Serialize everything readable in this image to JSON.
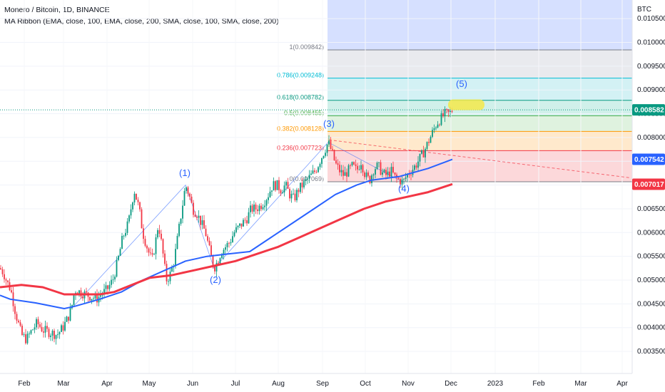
{
  "header": {
    "title": "Monero / Bitcoin, 1D, BINANCE",
    "indicator": "MA Ribbon (EMA, close, 100, EMA, close, 200, SMA, close, 100, SMA, close, 200)"
  },
  "chart_data": {
    "type": "candlestick",
    "price_axis_unit": "BTC",
    "y_ticks": [
      "0.010500",
      "0.010000",
      "0.009500",
      "0.009000",
      "0.008500",
      "0.008000",
      "0.007500",
      "0.007000",
      "0.006500",
      "0.006000",
      "0.005500",
      "0.005000",
      "0.004500",
      "0.004000",
      "0.003500"
    ],
    "x_ticks": [
      "Feb",
      "Mar",
      "Apr",
      "May",
      "Jun",
      "Jul",
      "Aug",
      "Sep",
      "Oct",
      "Nov",
      "Dec",
      "2023",
      "Feb",
      "Mar",
      "Apr"
    ],
    "fib_levels": [
      {
        "ratio": "1",
        "price": 0.009842,
        "label": "1(0.009842)",
        "color": "#787b86"
      },
      {
        "ratio": "0.786",
        "price": 0.009248,
        "label": "0.786(0.009248)",
        "color": "#00bcd4"
      },
      {
        "ratio": "0.618",
        "price": 0.008782,
        "label": "0.618(0.008782)",
        "color": "#089981"
      },
      {
        "ratio": "0.5",
        "price": 0.008455,
        "label": "0.5(0.008455)",
        "color": "#4caf50"
      },
      {
        "ratio": "0.382",
        "price": 0.008128,
        "label": "0.382(0.008128)",
        "color": "#ff9800"
      },
      {
        "ratio": "0.236",
        "price": 0.007723,
        "label": "0.236(0.007723)",
        "color": "#f23645"
      },
      {
        "ratio": "0",
        "price": 0.007069,
        "label": "0(0.007069)",
        "color": "#787b86"
      }
    ],
    "price_tags": [
      {
        "value": "0.008582",
        "color": "#089981"
      },
      {
        "value": "0.007542",
        "color": "#2962ff"
      },
      {
        "value": "0.007017",
        "color": "#f23645"
      }
    ],
    "wave_labels": [
      "(1)",
      "(2)",
      "(3)",
      "(4)",
      "(5)"
    ],
    "series": [
      {
        "name": "EMA 100",
        "color": "#2962ff",
        "values": [
          [
            0,
            0.00468
          ],
          [
            14,
            0.0046
          ],
          [
            50,
            0.00452
          ],
          [
            90,
            0.0044
          ],
          [
            105,
            0.00445
          ],
          [
            140,
            0.0046
          ],
          [
            170,
            0.00475
          ],
          [
            200,
            0.005
          ],
          [
            230,
            0.0052
          ],
          [
            260,
            0.0054
          ],
          [
            290,
            0.0055
          ],
          [
            320,
            0.00555
          ],
          [
            350,
            0.0056
          ],
          [
            380,
            0.0059
          ],
          [
            410,
            0.0062
          ],
          [
            440,
            0.0065
          ],
          [
            470,
            0.0068
          ],
          [
            500,
            0.007
          ],
          [
            520,
            0.0071
          ],
          [
            560,
            0.00718
          ],
          [
            600,
            0.00735
          ],
          [
            634,
            0.00754
          ]
        ]
      },
      {
        "name": "EMA 200",
        "color": "#f23645",
        "values": [
          [
            0,
            0.00485
          ],
          [
            30,
            0.0049
          ],
          [
            60,
            0.00485
          ],
          [
            90,
            0.0047
          ],
          [
            110,
            0.0047
          ],
          [
            140,
            0.0047
          ],
          [
            160,
            0.00475
          ],
          [
            185,
            0.0049
          ],
          [
            210,
            0.00505
          ],
          [
            240,
            0.0051
          ],
          [
            270,
            0.0052
          ],
          [
            300,
            0.0053
          ],
          [
            330,
            0.0054
          ],
          [
            360,
            0.00555
          ],
          [
            390,
            0.0057
          ],
          [
            420,
            0.0059
          ],
          [
            450,
            0.0061
          ],
          [
            480,
            0.0063
          ],
          [
            510,
            0.0065
          ],
          [
            540,
            0.00665
          ],
          [
            570,
            0.00675
          ],
          [
            600,
            0.00685
          ],
          [
            634,
            0.00702
          ]
        ]
      },
      {
        "name": "Close",
        "color": "#089981",
        "values": [
          [
            0,
            0.00525
          ],
          [
            5,
            0.00515
          ],
          [
            10,
            0.00495
          ],
          [
            15,
            0.0048
          ],
          [
            22,
            0.0043
          ],
          [
            30,
            0.00385
          ],
          [
            37,
            0.00375
          ],
          [
            45,
            0.00395
          ],
          [
            52,
            0.0041
          ],
          [
            60,
            0.00395
          ],
          [
            70,
            0.0039
          ],
          [
            80,
            0.00385
          ],
          [
            88,
            0.004
          ],
          [
            95,
            0.0042
          ],
          [
            100,
            0.0044
          ],
          [
            105,
            0.0048
          ],
          [
            112,
            0.00475
          ],
          [
            120,
            0.0047
          ],
          [
            128,
            0.00465
          ],
          [
            135,
            0.0046
          ],
          [
            142,
            0.0047
          ],
          [
            150,
            0.0048
          ],
          [
            158,
            0.005
          ],
          [
            165,
            0.0054
          ],
          [
            172,
            0.0059
          ],
          [
            180,
            0.0062
          ],
          [
            188,
            0.0069
          ],
          [
            195,
            0.0065
          ],
          [
            200,
            0.006
          ],
          [
            208,
            0.0056
          ],
          [
            213,
            0.0054
          ],
          [
            218,
            0.0058
          ],
          [
            222,
            0.0062
          ],
          [
            228,
            0.0056
          ],
          [
            233,
            0.005
          ],
          [
            238,
            0.0051
          ],
          [
            244,
            0.0054
          ],
          [
            250,
            0.006
          ],
          [
            256,
            0.0066
          ],
          [
            260,
            0.007
          ],
          [
            265,
            0.0068
          ],
          [
            270,
            0.0065
          ],
          [
            276,
            0.0064
          ],
          [
            282,
            0.0062
          ],
          [
            288,
            0.006
          ],
          [
            294,
            0.0056
          ],
          [
            300,
            0.00525
          ],
          [
            305,
            0.0054
          ],
          [
            310,
            0.0056
          ],
          [
            316,
            0.0057
          ],
          [
            322,
            0.0058
          ],
          [
            328,
            0.006
          ],
          [
            334,
            0.0061
          ],
          [
            340,
            0.0062
          ],
          [
            346,
            0.0063
          ],
          [
            352,
            0.0065
          ],
          [
            358,
            0.0065
          ],
          [
            364,
            0.00655
          ],
          [
            370,
            0.00665
          ],
          [
            376,
            0.0068
          ],
          [
            382,
            0.007
          ],
          [
            388,
            0.007
          ],
          [
            394,
            0.0069
          ],
          [
            400,
            0.007
          ],
          [
            406,
            0.0068
          ],
          [
            412,
            0.0067
          ],
          [
            418,
            0.0069
          ],
          [
            424,
            0.007
          ],
          [
            430,
            0.0071
          ],
          [
            436,
            0.0072
          ],
          [
            442,
            0.0073
          ],
          [
            448,
            0.0075
          ],
          [
            454,
            0.0077
          ],
          [
            460,
            0.0079
          ],
          [
            465,
            0.0077
          ],
          [
            470,
            0.00745
          ],
          [
            476,
            0.0073
          ],
          [
            482,
            0.0072
          ],
          [
            488,
            0.0073
          ],
          [
            494,
            0.0074
          ],
          [
            500,
            0.0073
          ],
          [
            506,
            0.0075
          ],
          [
            512,
            0.0072
          ],
          [
            518,
            0.0071
          ],
          [
            524,
            0.00735
          ],
          [
            530,
            0.0074
          ],
          [
            536,
            0.00725
          ],
          [
            542,
            0.0072
          ],
          [
            548,
            0.0073
          ],
          [
            554,
            0.00715
          ],
          [
            560,
            0.0071
          ],
          [
            565,
            0.00706
          ],
          [
            570,
            0.0072
          ],
          [
            576,
            0.0073
          ],
          [
            582,
            0.0074
          ],
          [
            588,
            0.00755
          ],
          [
            594,
            0.0077
          ],
          [
            600,
            0.0079
          ],
          [
            606,
            0.0081
          ],
          [
            612,
            0.0083
          ],
          [
            618,
            0.0084
          ],
          [
            624,
            0.0085
          ],
          [
            630,
            0.0085
          ],
          [
            634,
            0.00858
          ]
        ]
      }
    ]
  }
}
